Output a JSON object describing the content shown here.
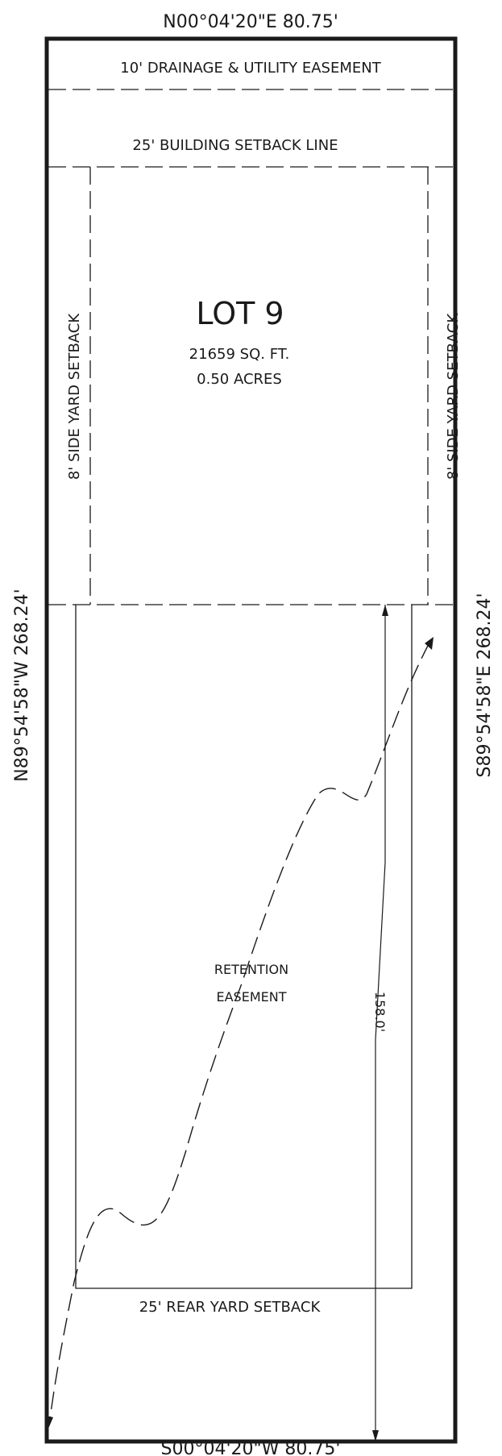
{
  "bearings": {
    "north": "N00°04'20\"E   80.75'",
    "south": "S00°04'20\"W   80.75'",
    "west": "N89°54'58\"W   268.24'",
    "east": "S89°54'58\"E   268.24'"
  },
  "easements": {
    "drainage_utility": "10' DRAINAGE & UTILITY EASEMENT",
    "building_setback": "25' BUILDING SETBACK LINE",
    "side_left": "8' SIDE YARD SETBACK",
    "side_right": "8' SIDE YARD SETBACK",
    "rear_setback": "25' REAR YARD SETBACK",
    "retention_line1": "RETENTION",
    "retention_line2": "EASEMENT"
  },
  "lot": {
    "name": "LOT 9",
    "area_sqft": "21659 SQ. FT.",
    "area_acres": "0.50 ACRES"
  },
  "dimensions": {
    "retention_depth": "158.0'"
  },
  "colors": {
    "ink": "#1a1a1a",
    "background": "#ffffff"
  }
}
